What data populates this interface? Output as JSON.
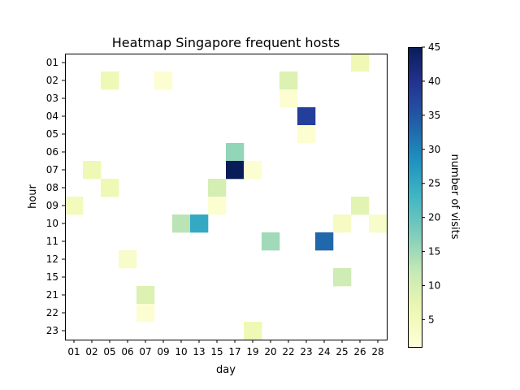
{
  "chart_data": {
    "type": "heatmap",
    "title": "Heatmap Singapore frequent hosts",
    "xlabel": "day",
    "ylabel": "hour",
    "x_categories": [
      "01",
      "02",
      "05",
      "06",
      "07",
      "09",
      "10",
      "13",
      "15",
      "17",
      "19",
      "20",
      "22",
      "23",
      "24",
      "25",
      "26",
      "28"
    ],
    "y_categories": [
      "01",
      "02",
      "03",
      "04",
      "05",
      "06",
      "07",
      "08",
      "09",
      "10",
      "11",
      "12",
      "15",
      "21",
      "22",
      "23"
    ],
    "colorbar": {
      "label": "number of visits",
      "range": [
        1,
        45
      ],
      "ticks": [
        5,
        10,
        15,
        20,
        25,
        30,
        35,
        40,
        45
      ],
      "colormap": "YlGnBu"
    },
    "cells": [
      {
        "x": "26",
        "y": "01",
        "value": 6
      },
      {
        "x": "05",
        "y": "02",
        "value": 6
      },
      {
        "x": "09",
        "y": "02",
        "value": 2
      },
      {
        "x": "22",
        "y": "02",
        "value": 9
      },
      {
        "x": "22",
        "y": "03",
        "value": 2
      },
      {
        "x": "23",
        "y": "04",
        "value": 38
      },
      {
        "x": "23",
        "y": "05",
        "value": 2
      },
      {
        "x": "17",
        "y": "06",
        "value": 16
      },
      {
        "x": "02",
        "y": "07",
        "value": 6
      },
      {
        "x": "17",
        "y": "07",
        "value": 45
      },
      {
        "x": "19",
        "y": "07",
        "value": 2
      },
      {
        "x": "05",
        "y": "08",
        "value": 6
      },
      {
        "x": "15",
        "y": "08",
        "value": 10
      },
      {
        "x": "01",
        "y": "09",
        "value": 5
      },
      {
        "x": "15",
        "y": "09",
        "value": 2
      },
      {
        "x": "26",
        "y": "09",
        "value": 8
      },
      {
        "x": "10",
        "y": "10",
        "value": 13
      },
      {
        "x": "13",
        "y": "10",
        "value": 25
      },
      {
        "x": "25",
        "y": "10",
        "value": 4
      },
      {
        "x": "28",
        "y": "10",
        "value": 3
      },
      {
        "x": "20",
        "y": "11",
        "value": 15
      },
      {
        "x": "24",
        "y": "11",
        "value": 33
      },
      {
        "x": "06",
        "y": "12",
        "value": 3
      },
      {
        "x": "25",
        "y": "15",
        "value": 11
      },
      {
        "x": "07",
        "y": "21",
        "value": 9
      },
      {
        "x": "07",
        "y": "22",
        "value": 2
      },
      {
        "x": "19",
        "y": "23",
        "value": 6
      }
    ]
  }
}
